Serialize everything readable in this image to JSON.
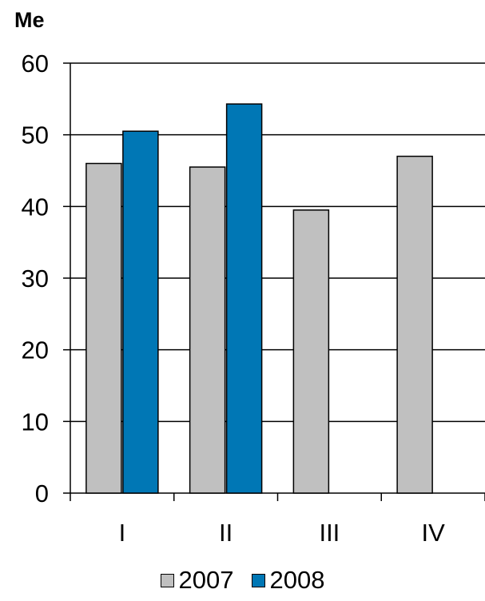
{
  "chart_data": {
    "type": "bar",
    "unit_label": "Me",
    "categories": [
      "I",
      "II",
      "III",
      "IV"
    ],
    "series": [
      {
        "name": "2007",
        "values": [
          46,
          45.5,
          39.5,
          47
        ],
        "color": "#c0c0c0"
      },
      {
        "name": "2008",
        "values": [
          50.5,
          54.3,
          null,
          null
        ],
        "color": "#0077b5"
      }
    ],
    "ylim": [
      0,
      60
    ],
    "yticks": [
      "0",
      "10",
      "20",
      "30",
      "40",
      "50",
      "60"
    ],
    "grid": true,
    "legend_position": "bottom"
  }
}
